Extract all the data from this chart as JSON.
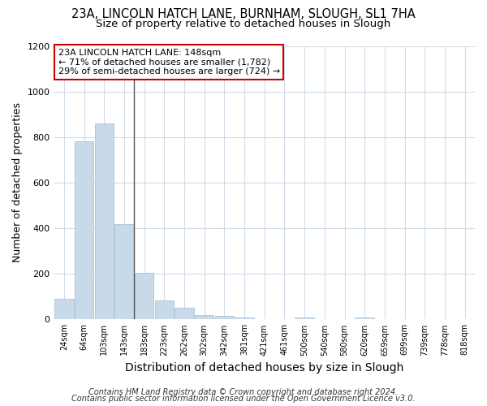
{
  "title1": "23A, LINCOLN HATCH LANE, BURNHAM, SLOUGH, SL1 7HA",
  "title2": "Size of property relative to detached houses in Slough",
  "xlabel": "Distribution of detached houses by size in Slough",
  "ylabel": "Number of detached properties",
  "categories": [
    "24sqm",
    "64sqm",
    "103sqm",
    "143sqm",
    "183sqm",
    "223sqm",
    "262sqm",
    "302sqm",
    "342sqm",
    "381sqm",
    "421sqm",
    "461sqm",
    "500sqm",
    "540sqm",
    "580sqm",
    "620sqm",
    "659sqm",
    "699sqm",
    "739sqm",
    "778sqm",
    "818sqm"
  ],
  "values": [
    90,
    780,
    860,
    420,
    205,
    85,
    52,
    20,
    15,
    10,
    0,
    0,
    10,
    0,
    0,
    10,
    0,
    0,
    0,
    0,
    0
  ],
  "bar_color": "#c8d9ea",
  "bar_edge_color": "#a0bcd4",
  "ylim": [
    0,
    1200
  ],
  "yticks": [
    0,
    200,
    400,
    600,
    800,
    1000,
    1200
  ],
  "annotation_title": "23A LINCOLN HATCH LANE: 148sqm",
  "annotation_line1": "← 71% of detached houses are smaller (1,782)",
  "annotation_line2": "29% of semi-detached houses are larger (724) →",
  "annotation_box_color": "#ffffff",
  "annotation_box_edge": "#cc0000",
  "vline_color": "#555555",
  "vline_x": 3.5,
  "footer1": "Contains HM Land Registry data © Crown copyright and database right 2024.",
  "footer2": "Contains public sector information licensed under the Open Government Licence v3.0.",
  "background_color": "#ffffff",
  "plot_bg_color": "#ffffff",
  "grid_color": "#d0dce8",
  "title1_fontsize": 10.5,
  "title2_fontsize": 9.5,
  "ylabel_fontsize": 9,
  "xlabel_fontsize": 10,
  "annotation_fontsize": 8,
  "footer_fontsize": 7
}
